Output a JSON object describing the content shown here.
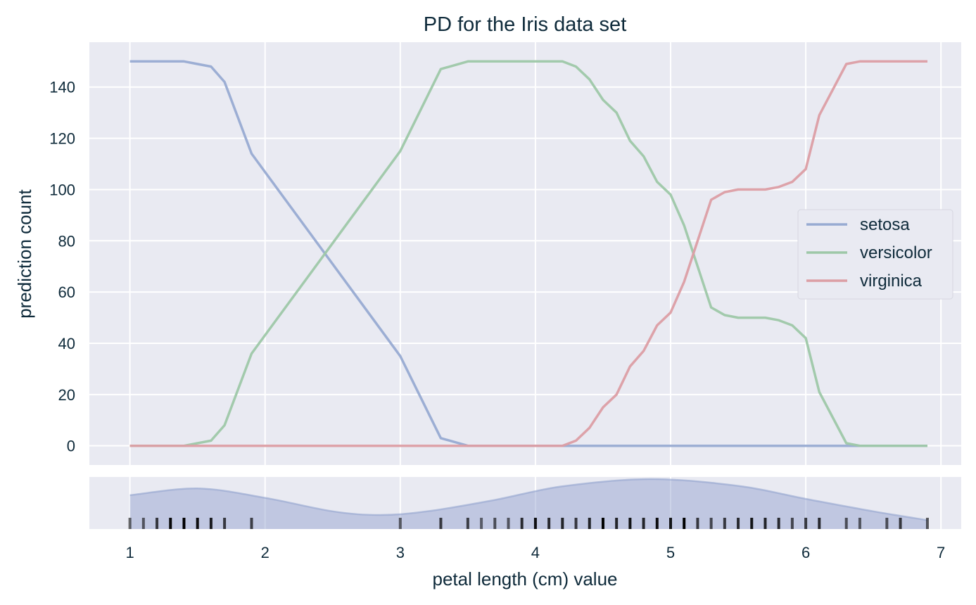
{
  "colors": {
    "panel_bg": "#e9eaf2",
    "grid": "#ffffff",
    "text": "#0e2a3a",
    "density_fill": "#8d9ecc",
    "rug_light": "#8a8a8a",
    "rug_dark": "#000000"
  },
  "chart_data": {
    "type": "line",
    "title": "PD for the Iris data set",
    "xlabel": "petal length (cm) value",
    "ylabel": "prediction count",
    "xlim": [
      0.7,
      7.15
    ],
    "ylim": [
      -7.5,
      157.5
    ],
    "x_ticks": [
      "1",
      "2",
      "3",
      "4",
      "5",
      "6",
      "7"
    ],
    "y_ticks": [
      "0",
      "20",
      "40",
      "60",
      "80",
      "100",
      "120",
      "140"
    ],
    "grid": true,
    "legend_position": "center-right",
    "x": [
      1.0,
      1.1,
      1.2,
      1.3,
      1.4,
      1.5,
      1.6,
      1.7,
      1.9,
      3.0,
      3.3,
      3.5,
      3.6,
      3.7,
      3.8,
      3.9,
      4.0,
      4.1,
      4.2,
      4.3,
      4.4,
      4.5,
      4.6,
      4.7,
      4.8,
      4.9,
      5.0,
      5.1,
      5.2,
      5.3,
      5.4,
      5.5,
      5.6,
      5.7,
      5.8,
      5.9,
      6.0,
      6.1,
      6.3,
      6.4,
      6.6,
      6.7,
      6.9
    ],
    "series": [
      {
        "name": "setosa",
        "color": "#98abd2",
        "values": [
          150,
          150,
          150,
          150,
          150,
          149,
          148,
          142,
          114,
          35,
          3,
          0,
          0,
          0,
          0,
          0,
          0,
          0,
          0,
          0,
          0,
          0,
          0,
          0,
          0,
          0,
          0,
          0,
          0,
          0,
          0,
          0,
          0,
          0,
          0,
          0,
          0,
          0,
          0,
          0,
          0,
          0,
          0
        ]
      },
      {
        "name": "versicolor",
        "color": "#9ec8a8",
        "values": [
          0,
          0,
          0,
          0,
          0,
          1,
          2,
          8,
          36,
          115,
          147,
          150,
          150,
          150,
          150,
          150,
          150,
          150,
          150,
          148,
          143,
          135,
          130,
          119,
          113,
          103,
          98,
          86,
          70,
          54,
          51,
          50,
          50,
          50,
          49,
          47,
          42,
          21,
          1,
          0,
          0,
          0,
          0
        ]
      },
      {
        "name": "virginica",
        "color": "#dc9ea4",
        "values": [
          0,
          0,
          0,
          0,
          0,
          0,
          0,
          0,
          0,
          0,
          0,
          0,
          0,
          0,
          0,
          0,
          0,
          0,
          0,
          2,
          7,
          15,
          20,
          31,
          37,
          47,
          52,
          64,
          80,
          96,
          99,
          100,
          100,
          100,
          101,
          103,
          108,
          129,
          149,
          150,
          150,
          150,
          150
        ]
      }
    ],
    "distribution": {
      "type": "density-rug",
      "density_x": [
        1.0,
        1.5,
        2.0,
        2.5,
        2.85,
        3.2,
        3.7,
        4.2,
        4.85,
        5.5,
        6.0,
        6.5,
        6.9
      ],
      "density_y": [
        0.65,
        0.78,
        0.6,
        0.34,
        0.27,
        0.34,
        0.56,
        0.82,
        0.96,
        0.83,
        0.58,
        0.34,
        0.17
      ],
      "rug": [
        {
          "x": 1.0,
          "level": 0.4
        },
        {
          "x": 1.1,
          "level": 0.4
        },
        {
          "x": 1.2,
          "level": 0.6
        },
        {
          "x": 1.3,
          "level": 0.95
        },
        {
          "x": 1.4,
          "level": 1.0
        },
        {
          "x": 1.5,
          "level": 0.9
        },
        {
          "x": 1.6,
          "level": 0.8
        },
        {
          "x": 1.7,
          "level": 0.6
        },
        {
          "x": 1.9,
          "level": 0.55
        },
        {
          "x": 3.0,
          "level": 0.4
        },
        {
          "x": 3.3,
          "level": 0.6
        },
        {
          "x": 3.5,
          "level": 0.55
        },
        {
          "x": 3.6,
          "level": 0.35
        },
        {
          "x": 3.7,
          "level": 0.45
        },
        {
          "x": 3.8,
          "level": 0.4
        },
        {
          "x": 3.9,
          "level": 0.7
        },
        {
          "x": 4.0,
          "level": 0.9
        },
        {
          "x": 4.1,
          "level": 0.7
        },
        {
          "x": 4.2,
          "level": 0.75
        },
        {
          "x": 4.3,
          "level": 0.6
        },
        {
          "x": 4.4,
          "level": 0.75
        },
        {
          "x": 4.5,
          "level": 1.0
        },
        {
          "x": 4.6,
          "level": 0.75
        },
        {
          "x": 4.7,
          "level": 0.85
        },
        {
          "x": 4.8,
          "level": 0.75
        },
        {
          "x": 4.9,
          "level": 0.9
        },
        {
          "x": 5.0,
          "level": 0.85
        },
        {
          "x": 5.1,
          "level": 1.0
        },
        {
          "x": 5.2,
          "level": 0.6
        },
        {
          "x": 5.3,
          "level": 0.5
        },
        {
          "x": 5.4,
          "level": 0.6
        },
        {
          "x": 5.5,
          "level": 0.7
        },
        {
          "x": 5.6,
          "level": 0.85
        },
        {
          "x": 5.7,
          "level": 0.75
        },
        {
          "x": 5.8,
          "level": 0.7
        },
        {
          "x": 5.9,
          "level": 0.5
        },
        {
          "x": 6.0,
          "level": 0.6
        },
        {
          "x": 6.1,
          "level": 0.7
        },
        {
          "x": 6.3,
          "level": 0.45
        },
        {
          "x": 6.4,
          "level": 0.4
        },
        {
          "x": 6.6,
          "level": 0.45
        },
        {
          "x": 6.7,
          "level": 0.6
        },
        {
          "x": 6.9,
          "level": 0.45
        }
      ]
    }
  }
}
